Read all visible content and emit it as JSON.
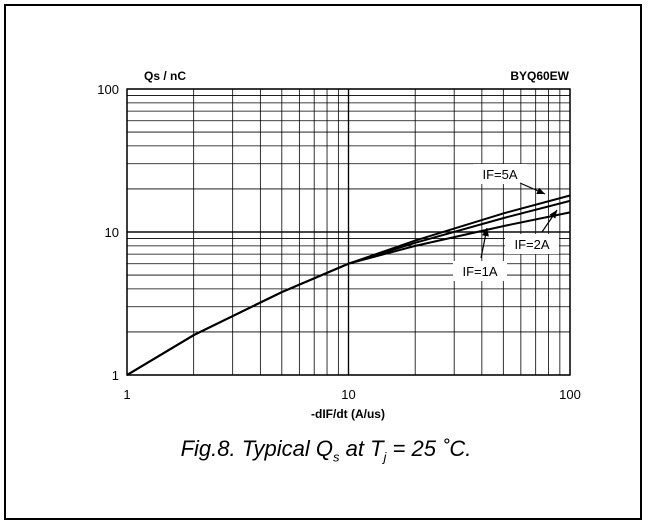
{
  "chart_data": {
    "type": "line",
    "title": "BYQ60EW",
    "ylabel": "Qs / nC",
    "xlabel": "-dIF/dt (A/us)",
    "x_scale": "log",
    "y_scale": "log",
    "xlim": [
      1,
      100
    ],
    "ylim": [
      1,
      100
    ],
    "grid": true,
    "x_ticks": [
      "1",
      "10",
      "100"
    ],
    "y_ticks": [
      "1",
      "10",
      "100"
    ],
    "series": [
      {
        "name": "IF=5A",
        "x": [
          1,
          2,
          5,
          10,
          20,
          50,
          100
        ],
        "y": [
          1,
          1.9,
          3.8,
          6.0,
          8.7,
          13.5,
          18.0
        ]
      },
      {
        "name": "IF=2A",
        "x": [
          1,
          2,
          5,
          10,
          20,
          50,
          100
        ],
        "y": [
          1,
          1.9,
          3.8,
          6.0,
          8.4,
          12.5,
          16.5
        ]
      },
      {
        "name": "IF=1A",
        "x": [
          1,
          2,
          5,
          10,
          20,
          50,
          100
        ],
        "y": [
          1,
          1.9,
          3.8,
          6.0,
          8.0,
          11.0,
          13.7
        ]
      }
    ]
  },
  "caption": {
    "prefix": "Fig.8.  Typical Q",
    "sub_s": "s",
    "mid": " at T",
    "sub_j": "j",
    "suffix": " = 25 ˚C."
  }
}
